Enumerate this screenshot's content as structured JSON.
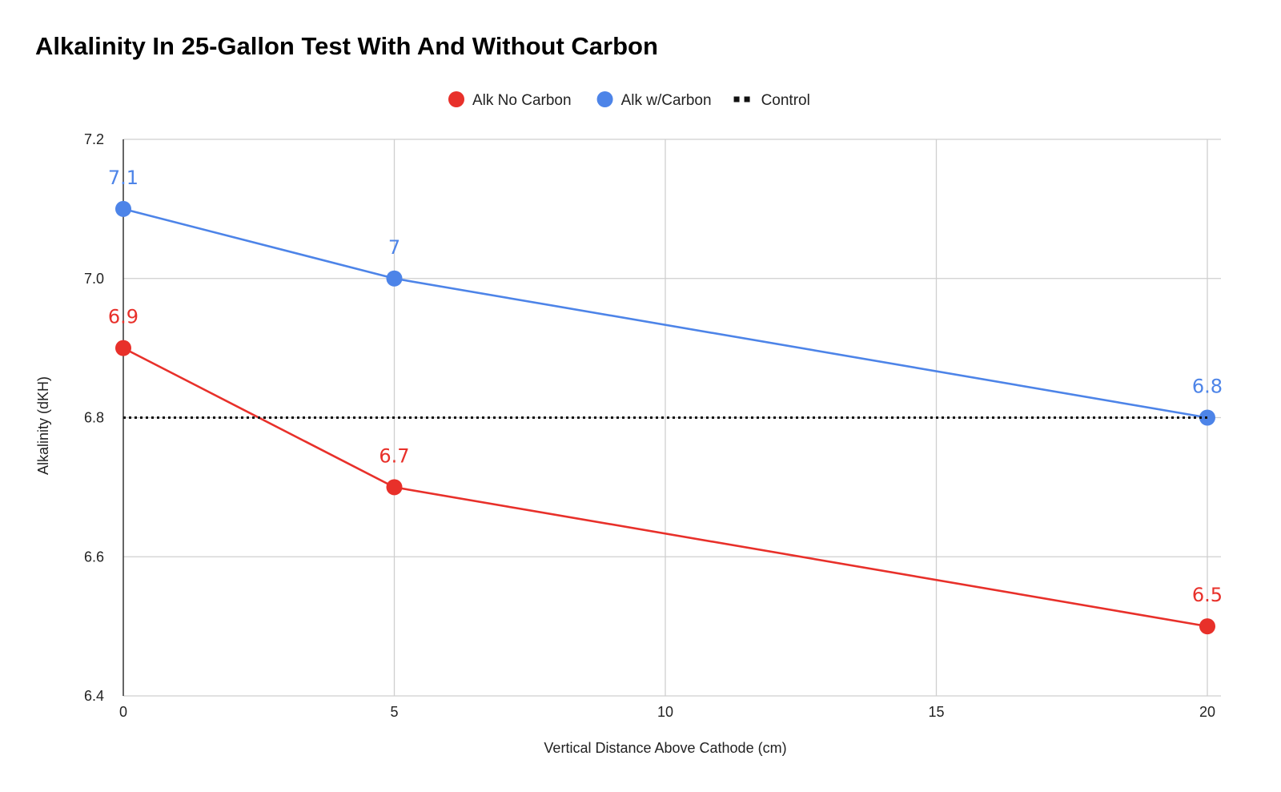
{
  "chart_data": {
    "type": "line",
    "title": "Alkalinity In 25-Gallon Test With And Without Carbon",
    "xlabel": "Vertical Distance Above Cathode (cm)",
    "ylabel": "Alkalinity (dKH)",
    "xlim": [
      0,
      20
    ],
    "ylim": [
      6.4,
      7.2
    ],
    "x_ticks": [
      0,
      5,
      10,
      15,
      20
    ],
    "x_tick_labels": [
      "0",
      "5",
      "10",
      "15",
      "20"
    ],
    "y_ticks": [
      6.4,
      6.6,
      6.8,
      7.0,
      7.2
    ],
    "y_tick_labels": [
      "6.4",
      "6.6",
      "6.8",
      "7.0",
      "7.2"
    ],
    "grid": true,
    "legend_position": "top-center",
    "series": [
      {
        "name": "Alk No Carbon",
        "color": "#e8302a",
        "marker": "circle",
        "line_style": "solid",
        "x": [
          0,
          5,
          20
        ],
        "y": [
          6.9,
          6.7,
          6.5
        ],
        "data_labels": [
          "6.9",
          "6.7",
          "6.5"
        ]
      },
      {
        "name": "Alk w/Carbon",
        "color": "#4d84e8",
        "marker": "circle",
        "line_style": "solid",
        "x": [
          0,
          5,
          20
        ],
        "y": [
          7.1,
          7.0,
          6.8
        ],
        "data_labels": [
          "7.1",
          "7",
          "6.8"
        ]
      },
      {
        "name": "Control",
        "color": "#111111",
        "marker": "none",
        "line_style": "dotted",
        "x": [
          0,
          20
        ],
        "y": [
          6.8,
          6.8
        ],
        "data_labels": []
      }
    ]
  }
}
